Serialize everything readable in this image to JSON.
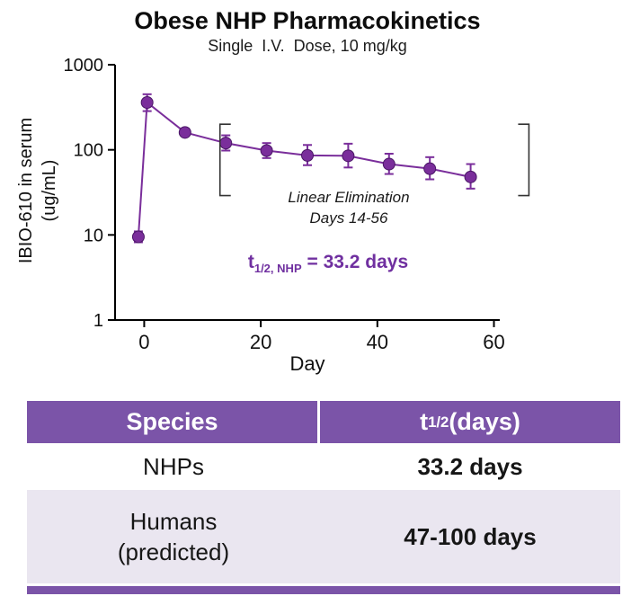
{
  "chart_data": {
    "type": "line",
    "title": "Obese NHP Pharmacokinetics",
    "subtitle": "Single  I.V.  Dose, 10 mg/kg",
    "xlabel": "Day",
    "ylabel_line1": "IBIO-610 in serum",
    "ylabel_line2": "(ug/mL)",
    "yscale": "log",
    "xlim": [
      -5,
      61
    ],
    "ylim": [
      1,
      1000
    ],
    "xticks": [
      0,
      20,
      40,
      60
    ],
    "yticks": [
      1,
      10,
      100,
      1000
    ],
    "grid": false,
    "legend": "none",
    "color": "#7A2E9B",
    "series": [
      {
        "name": "IBIO-610 serum concentration (ug/mL)",
        "x": [
          -1,
          0.5,
          7,
          14,
          21,
          28,
          35,
          42,
          49,
          56
        ],
        "y": [
          9.5,
          360,
          160,
          120,
          98,
          86,
          85,
          68,
          60,
          48
        ],
        "y_err_up": [
          1.5,
          90,
          18,
          28,
          22,
          28,
          33,
          22,
          22,
          20
        ],
        "y_err_down": [
          1.3,
          75,
          14,
          22,
          18,
          20,
          23,
          16,
          15,
          13
        ]
      }
    ],
    "annotations": {
      "linear_elimination_line1": "Linear Elimination",
      "linear_elimination_line2": "Days 14-56",
      "halflife_prefix": "t",
      "halflife_sub": "1/2, NHP",
      "halflife_rest": " = 33.2 days"
    },
    "brackets": {
      "days_x": [
        13,
        66
      ],
      "value_range": [
        29,
        200
      ],
      "hook": 12
    }
  },
  "table": {
    "header": {
      "species": "Species",
      "halflife_prefix": "t",
      "halflife_sub": "1/2",
      "halflife_rest": " (days)"
    },
    "rows": [
      {
        "species": "NHPs",
        "halflife": "33.2 days"
      },
      {
        "species": "Humans",
        "species_note": "(predicted)",
        "halflife": "47-100 days"
      }
    ]
  },
  "colors": {
    "plot_purple": "#7A2E9B",
    "halflife_text_purple": "#7030A0",
    "table_header_purple": "#7B54A8",
    "table_row_alt": "#EAE6F0"
  }
}
